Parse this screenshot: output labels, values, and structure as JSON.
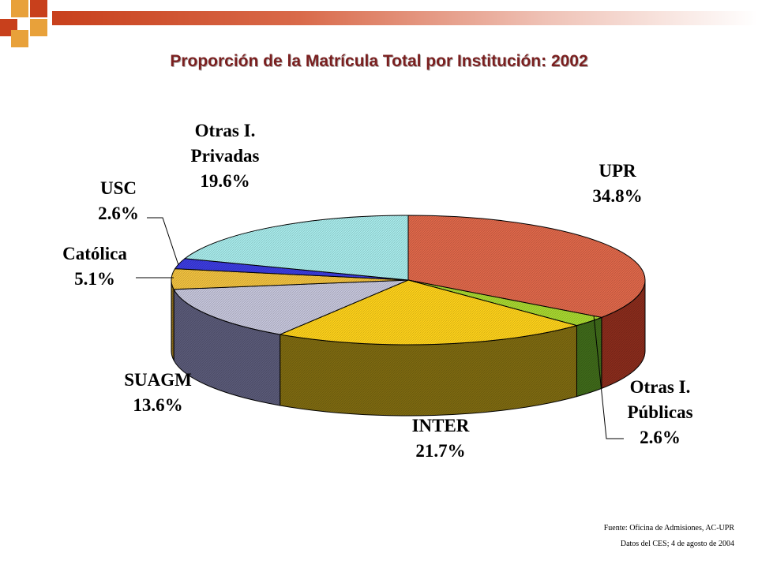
{
  "header": {
    "title": "Proporción de la Matrícula Total por Institución: 2002"
  },
  "footer": {
    "source": "Fuente: Oficina de Admisiones, AC-UPR",
    "data_note": "Datos del CES; 4 de agosto de 2004"
  },
  "colors": {
    "accent": "#c8401c",
    "accent_light": "#e8a13a",
    "title_color": "#7a1f1f"
  },
  "chart_data": {
    "type": "pie",
    "title": "Proporción de la Matrícula Total por Institución: 2002",
    "style": "3d",
    "slices": [
      {
        "label_lines": [
          "UPR"
        ],
        "value": 34.8,
        "value_label": "34.8%",
        "color": "#e0684a",
        "side_color": "#8a2c1c"
      },
      {
        "label_lines": [
          "Otras I.",
          "Públicas"
        ],
        "value": 2.6,
        "value_label": "2.6%",
        "color": "#a8d830",
        "side_color": "#3f6a1a"
      },
      {
        "label_lines": [
          "INTER"
        ],
        "value": 21.7,
        "value_label": "21.7%",
        "color": "#ffd21a",
        "side_color": "#7e6a10"
      },
      {
        "label_lines": [
          "SUAGM"
        ],
        "value": 13.6,
        "value_label": "13.6%",
        "color": "#c6c6dc",
        "side_color": "#5a5a78"
      },
      {
        "label_lines": [
          "Católica"
        ],
        "value": 5.1,
        "value_label": "5.1%",
        "color": "#f2c240",
        "side_color": "#8a6a18"
      },
      {
        "label_lines": [
          "USC"
        ],
        "value": 2.6,
        "value_label": "2.6%",
        "color": "#3c3ce0",
        "side_color": "#22228a"
      },
      {
        "label_lines": [
          "Otras I.",
          "Privadas"
        ],
        "value": 19.6,
        "value_label": "19.6%",
        "color": "#a8ecec",
        "side_color": "#4c8c8c"
      }
    ]
  }
}
